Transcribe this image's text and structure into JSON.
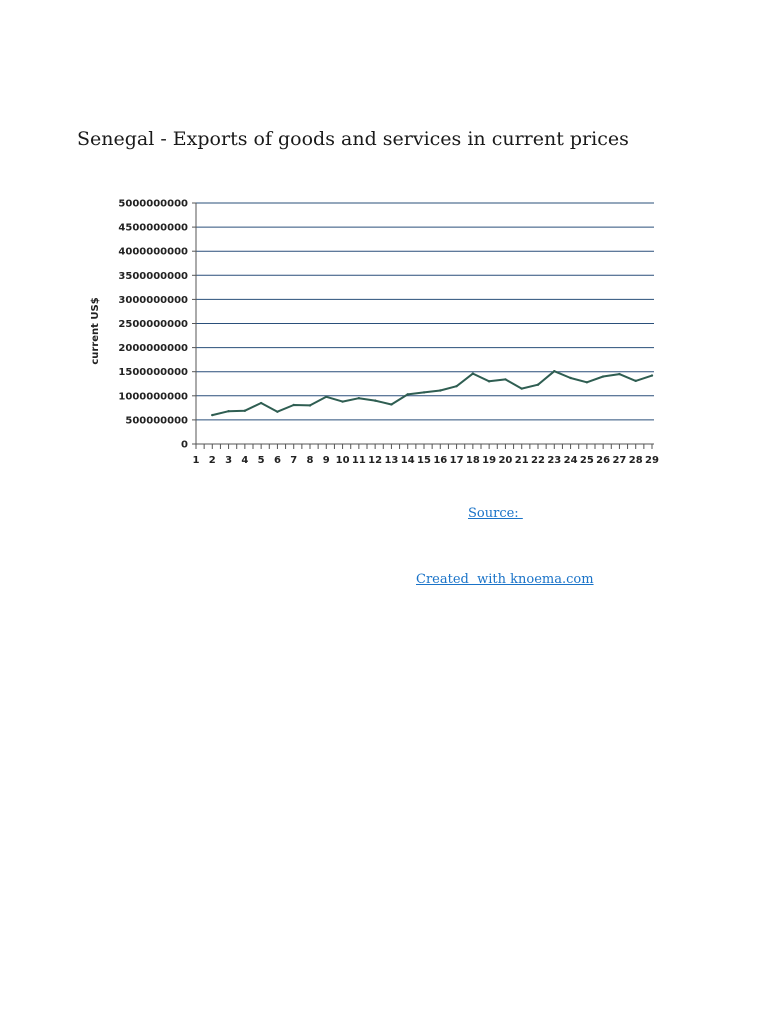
{
  "page": {
    "title": "Senegal - Exports of goods and services in current prices",
    "source_label": "Source: ",
    "created_label": "Created  with knoema.com"
  },
  "colors": {
    "line": "#2f5e52",
    "grid": "#2a4f7a",
    "axis": "#555555",
    "link": "#1a73c8"
  },
  "chart_data": {
    "type": "line",
    "title": "Senegal - Exports of goods and services in current prices",
    "xlabel": "",
    "ylabel": "current US$",
    "ylim": [
      0,
      5000000000
    ],
    "y_ticks": [
      0,
      500000000,
      1000000000,
      1500000000,
      2000000000,
      2500000000,
      3000000000,
      3500000000,
      4000000000,
      4500000000,
      5000000000
    ],
    "categories": [
      "1",
      "2",
      "3",
      "4",
      "5",
      "6",
      "7",
      "8",
      "9",
      "10",
      "11",
      "12",
      "13",
      "14",
      "15",
      "16",
      "17",
      "18",
      "19",
      "20",
      "21",
      "22",
      "23",
      "24",
      "25",
      "26",
      "27",
      "28",
      "29"
    ],
    "grid": true,
    "legend": "none",
    "series": [
      {
        "values": [
          null,
          600000000,
          680000000,
          690000000,
          850000000,
          670000000,
          810000000,
          800000000,
          980000000,
          880000000,
          950000000,
          900000000,
          820000000,
          1030000000,
          1070000000,
          1110000000,
          1200000000,
          1460000000,
          1300000000,
          1340000000,
          1150000000,
          1230000000,
          1510000000,
          1370000000,
          1280000000,
          1400000000,
          1450000000,
          1310000000,
          1420000000
        ]
      }
    ]
  }
}
